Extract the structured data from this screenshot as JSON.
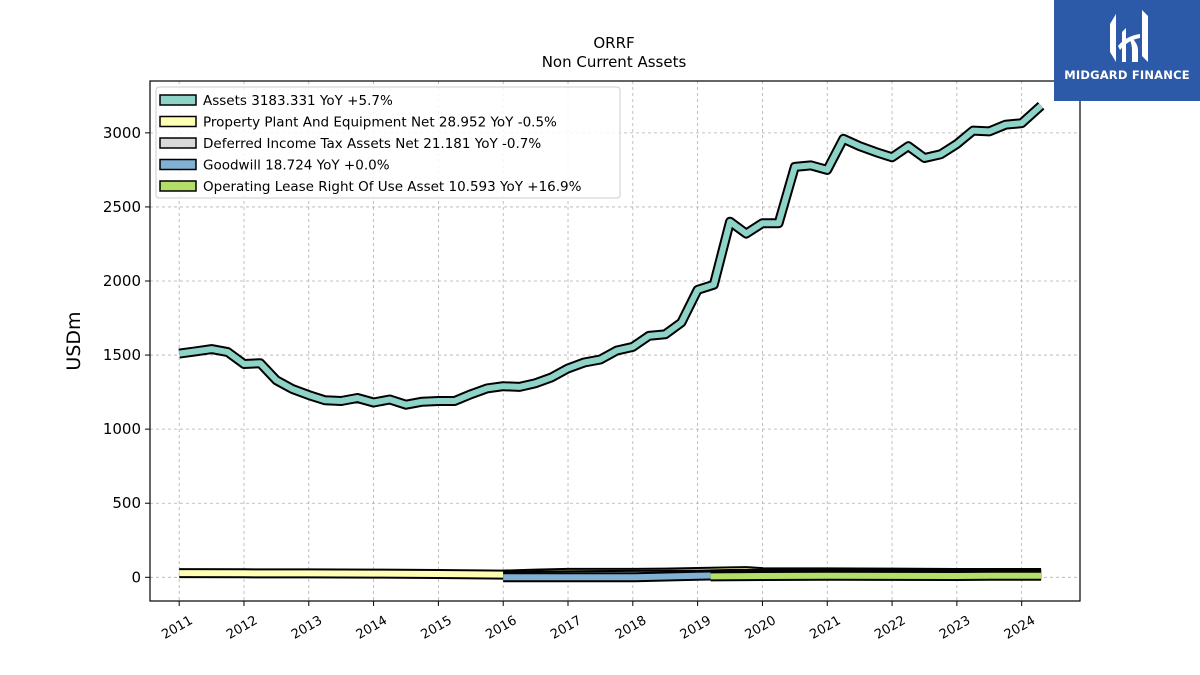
{
  "brand": {
    "name": "MIDGARD FINANCE",
    "bg_color": "#2d5aa8",
    "icon": "midgard-logo-icon"
  },
  "chart_data": {
    "type": "line",
    "title": "ORRF",
    "subtitle": "Non Current  Assets",
    "ylabel": "USDm",
    "xlabel": "",
    "xlim": [
      2010.55,
      2024.9
    ],
    "ylim": [
      -160,
      3350
    ],
    "yticks": [
      0,
      500,
      1000,
      1500,
      2000,
      2500,
      3000
    ],
    "xticks": [
      "2011",
      "2012",
      "2013",
      "2014",
      "2015",
      "2016",
      "2017",
      "2018",
      "2019",
      "2020",
      "2021",
      "2022",
      "2023",
      "2024"
    ],
    "grid": true,
    "legend_position": "top-left",
    "series": [
      {
        "name": "Assets  3183.331 YoY +5.7%",
        "color": "#8dd3c7",
        "x": [
          2011.0,
          2011.25,
          2011.5,
          2011.75,
          2012.0,
          2012.25,
          2012.5,
          2012.75,
          2013.0,
          2013.25,
          2013.5,
          2013.75,
          2014.0,
          2014.25,
          2014.5,
          2014.75,
          2015.0,
          2015.25,
          2015.5,
          2015.75,
          2016.0,
          2016.25,
          2016.5,
          2016.75,
          2017.0,
          2017.25,
          2017.5,
          2017.75,
          2018.0,
          2018.25,
          2018.5,
          2018.75,
          2019.0,
          2019.25,
          2019.5,
          2019.75,
          2020.0,
          2020.25,
          2020.5,
          2020.75,
          2021.0,
          2021.25,
          2021.5,
          2021.75,
          2022.0,
          2022.25,
          2022.5,
          2022.75,
          2023.0,
          2023.25,
          2023.5,
          2023.75,
          2024.0,
          2024.3
        ],
        "values": [
          1510,
          1525,
          1540,
          1520,
          1440,
          1445,
          1330,
          1270,
          1230,
          1195,
          1190,
          1210,
          1180,
          1200,
          1165,
          1185,
          1190,
          1190,
          1235,
          1275,
          1290,
          1285,
          1310,
          1350,
          1410,
          1450,
          1470,
          1530,
          1555,
          1630,
          1640,
          1720,
          1940,
          1975,
          2400,
          2320,
          2390,
          2390,
          2770,
          2780,
          2750,
          2960,
          2910,
          2870,
          2835,
          2910,
          2830,
          2855,
          2925,
          3015,
          3010,
          3055,
          3065,
          3183.331
        ]
      },
      {
        "name": "Property Plant And Equipment Net  28.952 YoY -0.5%",
        "color": "#ffffb3",
        "x": [
          2011.0,
          2012.0,
          2013.0,
          2014.0,
          2015.0,
          2016.0,
          2016.5,
          2017.0,
          2018.0,
          2018.5,
          2019.0,
          2019.5,
          2019.75,
          2020.0,
          2021.0,
          2022.0,
          2023.0,
          2024.3
        ],
        "values": [
          28,
          27,
          26,
          25,
          22,
          18,
          25,
          30,
          30,
          32,
          36,
          40,
          42,
          35,
          33,
          32,
          29,
          28.952
        ]
      },
      {
        "name": "Deferred Income Tax Assets Net  21.181 YoY -0.7%",
        "color": "#d9d9d9",
        "x": [
          2016.0,
          2016.5,
          2017.0,
          2018.0,
          2019.0,
          2019.5,
          2020.0,
          2021.0,
          2022.0,
          2023.0,
          2024.3
        ],
        "values": [
          8,
          12,
          14,
          16,
          18,
          22,
          24,
          23,
          22,
          21,
          21.181
        ]
      },
      {
        "name": "Goodwill  18.724 YoY +0.0%",
        "color": "#80b1d3",
        "x": [
          2016.0,
          2018.0,
          2019.0,
          2020.0,
          2021.0,
          2022.0,
          2023.0,
          2024.3
        ],
        "values": [
          0,
          0,
          10,
          18.724,
          18.724,
          18.724,
          18.724,
          18.724
        ]
      },
      {
        "name": "Operating Lease Right Of Use Asset  10.593 YoY +16.9%",
        "color": "#b3de69",
        "x": [
          2019.2,
          2020.0,
          2021.0,
          2022.0,
          2023.0,
          2023.5,
          2024.3
        ],
        "values": [
          6,
          9,
          10,
          9.5,
          9,
          10,
          10.593
        ]
      }
    ]
  }
}
